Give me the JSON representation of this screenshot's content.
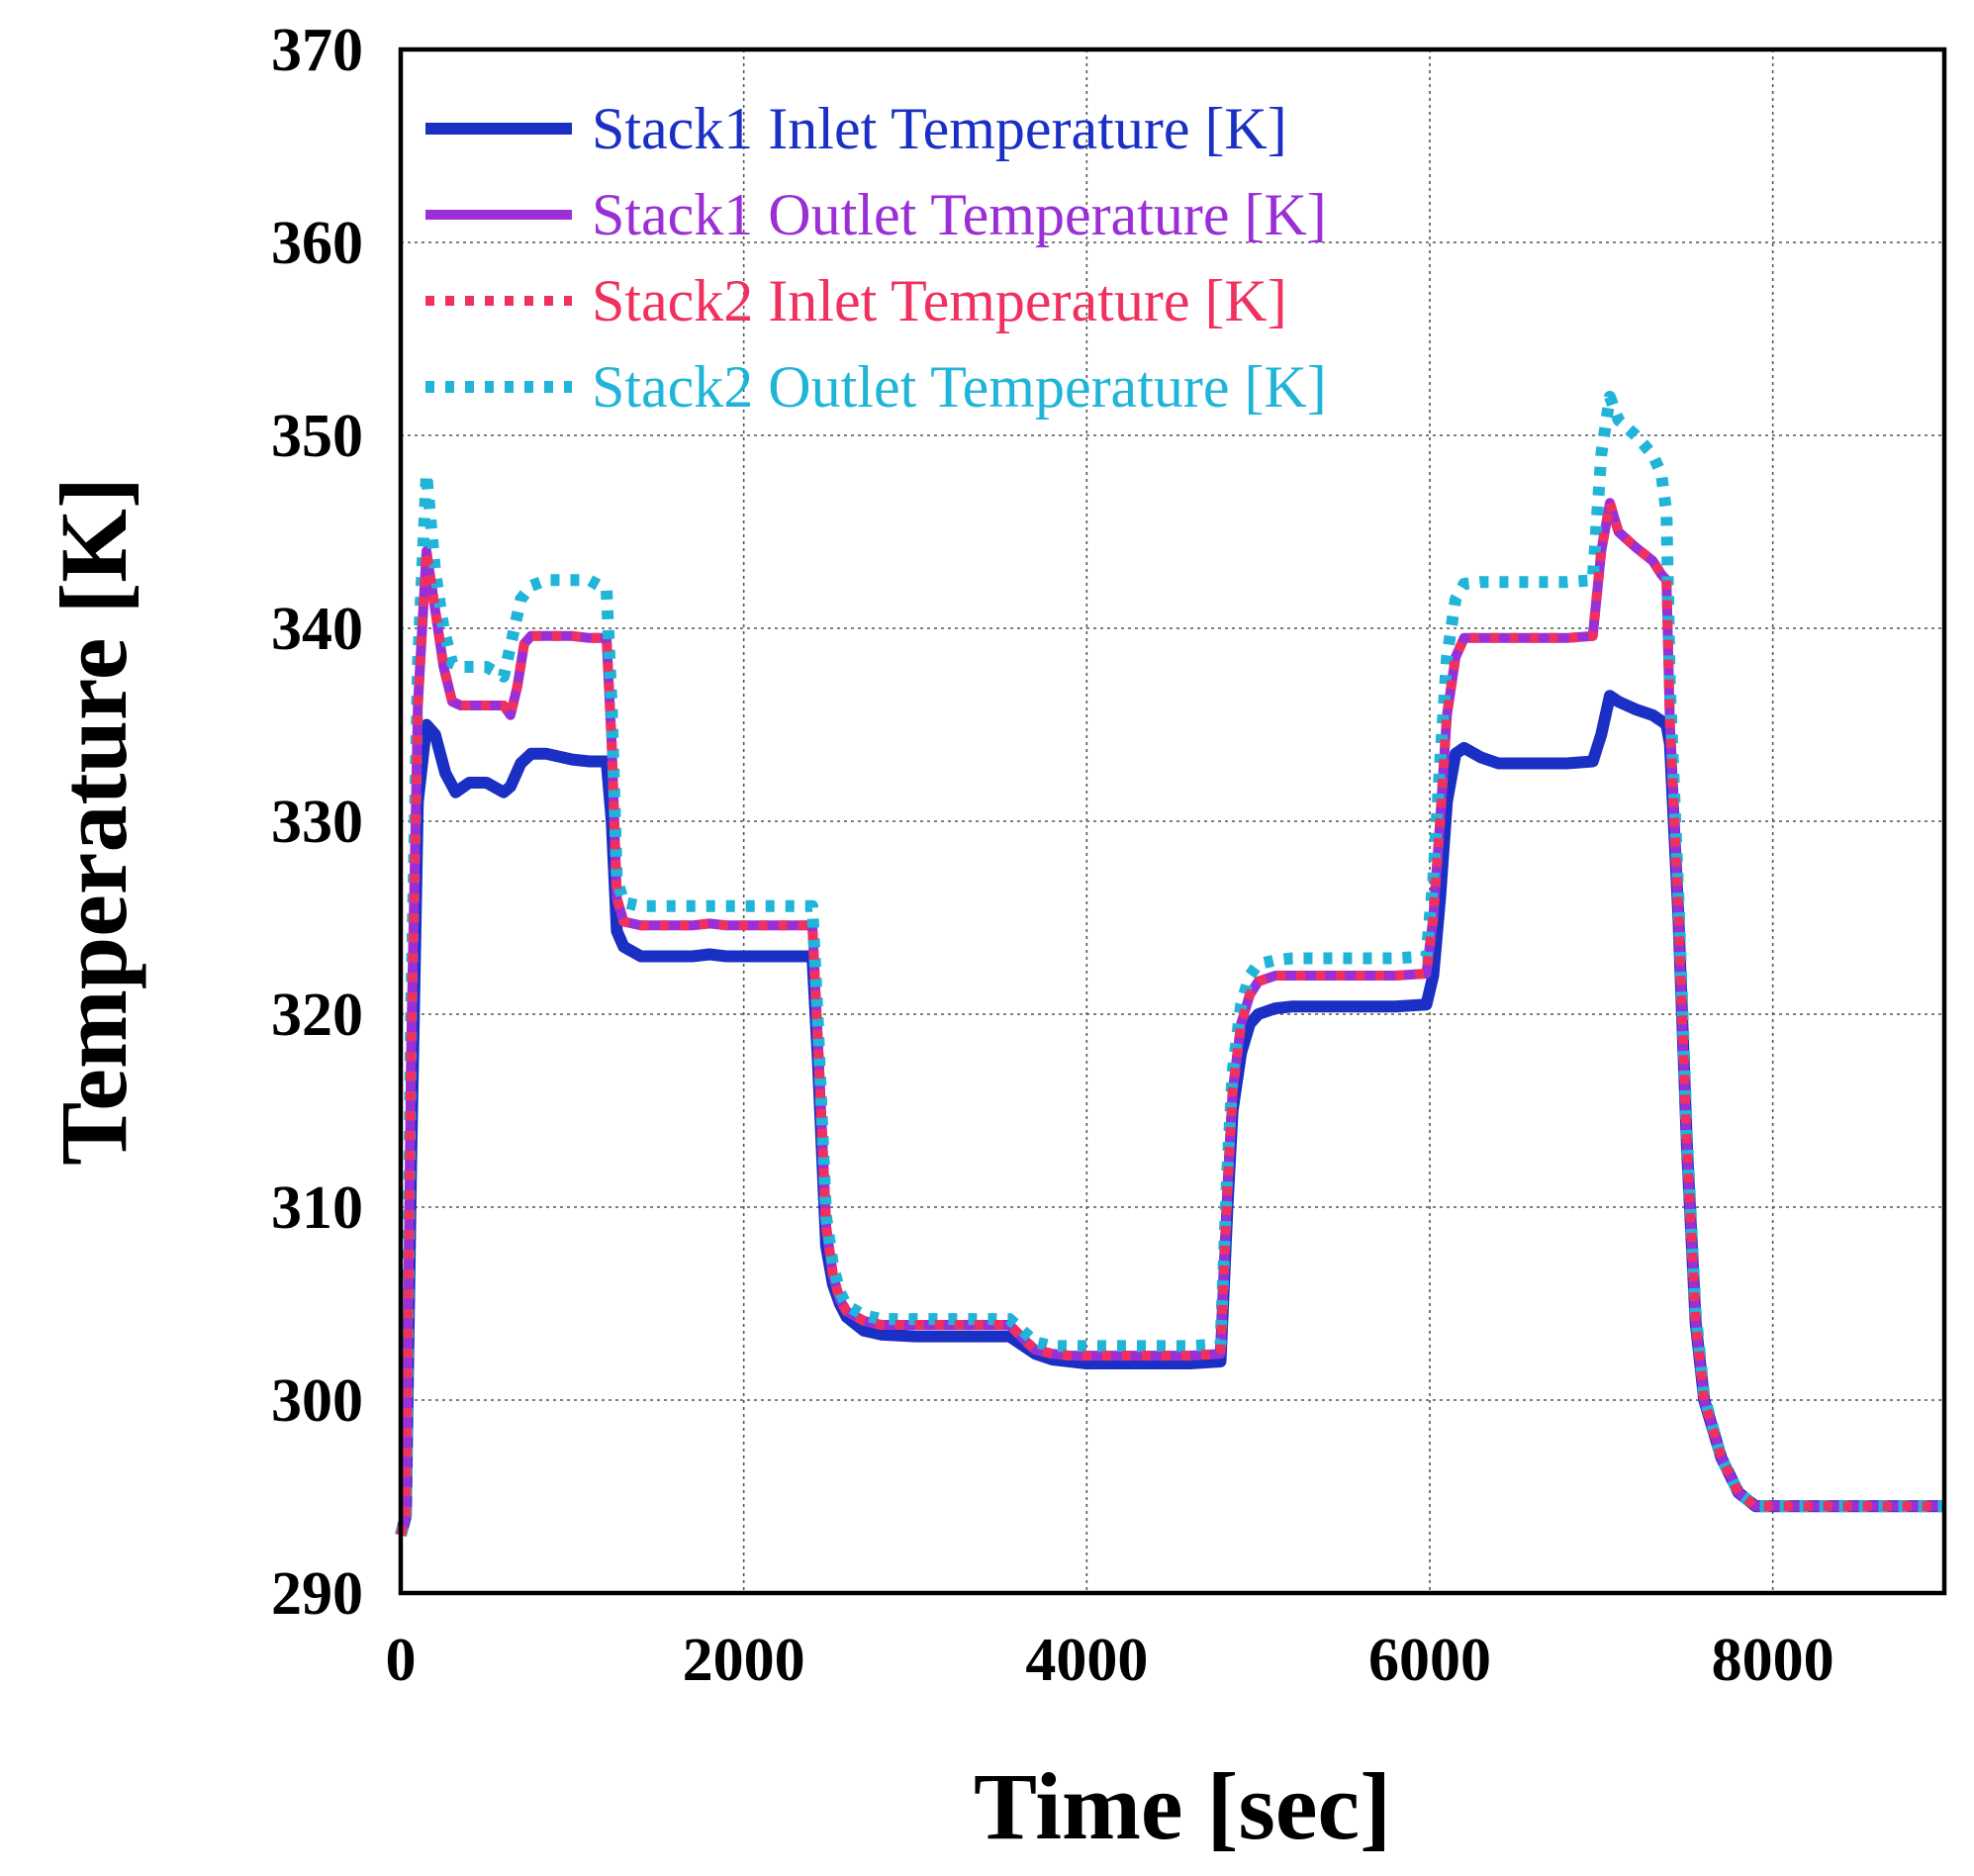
{
  "chart_data": {
    "type": "line",
    "title": "",
    "xlabel": "Time [sec]",
    "ylabel": "Temperature [K]",
    "xlim": [
      0,
      9000
    ],
    "ylim": [
      290,
      370
    ],
    "xticks": [
      0,
      2000,
      4000,
      6000,
      8000
    ],
    "yticks": [
      290,
      300,
      310,
      320,
      330,
      340,
      350,
      360,
      370
    ],
    "xtick_labels": [
      "0",
      "2000",
      "4000",
      "6000",
      "8000"
    ],
    "ytick_labels": [
      "290",
      "300",
      "310",
      "320",
      "330",
      "340",
      "350",
      "360",
      "370"
    ],
    "grid": true,
    "legend_position": "top-left",
    "series": [
      {
        "name": "Stack1 Inlet Temperature [K]",
        "color": "#1a2fc4",
        "style": "solid",
        "x": [
          0,
          30,
          60,
          100,
          150,
          200,
          260,
          320,
          400,
          500,
          600,
          640,
          700,
          760,
          850,
          1000,
          1100,
          1200,
          1230,
          1260,
          1300,
          1400,
          1500,
          1700,
          1800,
          1900,
          2000,
          2200,
          2400,
          2430,
          2480,
          2520,
          2560,
          2600,
          2700,
          2800,
          3000,
          3200,
          3400,
          3550,
          3650,
          3700,
          3800,
          3900,
          4000,
          4300,
          4600,
          4780,
          4820,
          4850,
          4900,
          4950,
          5000,
          5100,
          5200,
          5400,
          5600,
          5800,
          5980,
          6020,
          6060,
          6100,
          6150,
          6200,
          6300,
          6400,
          6600,
          6800,
          6950,
          7000,
          7050,
          7100,
          7200,
          7300,
          7350,
          7380,
          7400,
          7450,
          7500,
          7550,
          7600,
          7700,
          7800,
          7900,
          8000,
          8200,
          8500,
          9000
        ],
        "y": [
          293,
          294,
          312,
          331,
          335,
          334.5,
          332.5,
          331.5,
          332,
          332,
          331.5,
          331.8,
          333,
          333.5,
          333.5,
          333.2,
          333.1,
          333.1,
          330,
          324.3,
          323.5,
          323,
          323,
          323,
          323.1,
          323,
          323,
          323,
          323,
          318,
          308,
          306,
          305,
          304.3,
          303.6,
          303.4,
          303.3,
          303.3,
          303.3,
          303.3,
          302.7,
          302.4,
          302.1,
          302,
          301.9,
          301.9,
          301.9,
          302,
          310,
          315,
          318,
          319.5,
          320,
          320.3,
          320.4,
          320.4,
          320.4,
          320.4,
          320.5,
          322,
          326,
          331,
          333.5,
          333.8,
          333.3,
          333,
          333,
          333,
          333.1,
          334.5,
          336.5,
          336.2,
          335.8,
          335.5,
          335.2,
          335,
          334,
          325,
          313,
          304,
          300,
          297,
          295.2,
          294.5,
          294.5,
          294.5,
          294.5,
          294.5
        ]
      },
      {
        "name": "Stack1 Outlet Temperature [K]",
        "color": "#9b2fd6",
        "style": "solid",
        "x": [
          0,
          30,
          60,
          100,
          150,
          200,
          250,
          300,
          350,
          400,
          500,
          600,
          640,
          680,
          720,
          760,
          850,
          1000,
          1100,
          1200,
          1230,
          1260,
          1300,
          1400,
          1500,
          1700,
          1800,
          1900,
          2000,
          2200,
          2400,
          2430,
          2480,
          2520,
          2560,
          2600,
          2700,
          2800,
          3000,
          3200,
          3400,
          3550,
          3650,
          3700,
          3800,
          3900,
          4000,
          4300,
          4600,
          4780,
          4820,
          4850,
          4900,
          4950,
          5000,
          5100,
          5200,
          5400,
          5600,
          5800,
          5980,
          6020,
          6060,
          6100,
          6150,
          6200,
          6300,
          6400,
          6600,
          6800,
          6950,
          7000,
          7050,
          7100,
          7200,
          7300,
          7350,
          7380,
          7400,
          7450,
          7500,
          7550,
          7600,
          7700,
          7800,
          7900,
          8000,
          8200,
          8500,
          9000
        ],
        "y": [
          293,
          294,
          318,
          336,
          344,
          341,
          338,
          336.2,
          336,
          336,
          336,
          336,
          335.5,
          337,
          339.2,
          339.6,
          339.6,
          339.6,
          339.5,
          339.5,
          334,
          326,
          324.8,
          324.6,
          324.6,
          324.6,
          324.7,
          324.6,
          324.6,
          324.6,
          324.6,
          319,
          309,
          306.5,
          305.2,
          304.6,
          304.1,
          303.9,
          303.9,
          303.9,
          303.9,
          303.9,
          303,
          302.6,
          302.4,
          302.3,
          302.3,
          302.3,
          302.3,
          302.4,
          311,
          316,
          319.5,
          321,
          321.7,
          322,
          322,
          322,
          322,
          322,
          322.1,
          325,
          330,
          335.5,
          338.5,
          339.5,
          339.5,
          339.5,
          339.5,
          339.5,
          339.6,
          344,
          346.5,
          345,
          344.2,
          343.5,
          342.8,
          342.5,
          335,
          325,
          313,
          304,
          300,
          297,
          295.2,
          294.5,
          294.5,
          294.5,
          294.5,
          294.5
        ]
      },
      {
        "name": "Stack2 Inlet Temperature [K]",
        "color": "#f0305e",
        "style": "dotted",
        "x": [
          0,
          30,
          60,
          100,
          150,
          200,
          250,
          300,
          350,
          400,
          500,
          600,
          640,
          680,
          720,
          760,
          850,
          1000,
          1100,
          1200,
          1230,
          1260,
          1300,
          1400,
          1500,
          1700,
          1800,
          1900,
          2000,
          2200,
          2400,
          2430,
          2480,
          2520,
          2560,
          2600,
          2700,
          2800,
          3000,
          3200,
          3400,
          3550,
          3650,
          3700,
          3800,
          3900,
          4000,
          4300,
          4600,
          4780,
          4820,
          4850,
          4900,
          4950,
          5000,
          5100,
          5200,
          5400,
          5600,
          5800,
          5980,
          6020,
          6060,
          6100,
          6150,
          6200,
          6300,
          6400,
          6600,
          6800,
          6950,
          7000,
          7050,
          7100,
          7200,
          7300,
          7350,
          7380,
          7400,
          7450,
          7500,
          7550,
          7600,
          7700,
          7800,
          7900,
          8000,
          8200,
          8500,
          9000
        ],
        "y": [
          293,
          294,
          318,
          336,
          344,
          341,
          338,
          336.2,
          336,
          336,
          336,
          336,
          335.5,
          337,
          339.2,
          339.6,
          339.6,
          339.6,
          339.5,
          339.5,
          334,
          326,
          324.8,
          324.6,
          324.6,
          324.6,
          324.7,
          324.6,
          324.6,
          324.6,
          324.6,
          319,
          309,
          306.5,
          305.2,
          304.6,
          304.1,
          303.9,
          303.9,
          303.9,
          303.9,
          303.9,
          303,
          302.6,
          302.4,
          302.3,
          302.3,
          302.3,
          302.3,
          302.4,
          311,
          316,
          319.5,
          321,
          321.7,
          322,
          322,
          322,
          322,
          322,
          322.1,
          325,
          330,
          335.5,
          338.5,
          339.5,
          339.5,
          339.5,
          339.5,
          339.5,
          339.6,
          344,
          346.5,
          345,
          344.2,
          343.5,
          342.8,
          342.5,
          335,
          325,
          313,
          304,
          300,
          297,
          295.2,
          294.5,
          294.5,
          294.5,
          294.5,
          294.5
        ]
      },
      {
        "name": "Stack2 Outlet Temperature [K]",
        "color": "#1fb4d8",
        "style": "dotted",
        "x": [
          0,
          30,
          60,
          100,
          150,
          200,
          250,
          300,
          350,
          400,
          500,
          600,
          650,
          700,
          760,
          850,
          950,
          1000,
          1100,
          1200,
          1230,
          1260,
          1300,
          1400,
          1500,
          1700,
          1800,
          1900,
          2000,
          2200,
          2400,
          2430,
          2480,
          2520,
          2560,
          2600,
          2700,
          2800,
          3000,
          3200,
          3400,
          3550,
          3650,
          3700,
          3800,
          3900,
          4000,
          4300,
          4600,
          4780,
          4820,
          4850,
          4900,
          4950,
          5000,
          5100,
          5200,
          5400,
          5600,
          5800,
          5980,
          6020,
          6060,
          6100,
          6150,
          6200,
          6300,
          6400,
          6600,
          6800,
          6950,
          7000,
          7050,
          7100,
          7200,
          7300,
          7350,
          7380,
          7400,
          7450,
          7500,
          7550,
          7600,
          7700,
          7800,
          7900,
          8000,
          8200,
          8500,
          9000
        ],
        "y": [
          293,
          294,
          320,
          338,
          348,
          343,
          340,
          338.2,
          338,
          338,
          338,
          337.5,
          339.5,
          341.5,
          342.2,
          342.5,
          342.5,
          342.5,
          342.5,
          342,
          336,
          327,
          325.8,
          325.6,
          325.6,
          325.6,
          325.6,
          325.6,
          325.6,
          325.6,
          325.6,
          320,
          309.5,
          307,
          305.6,
          304.9,
          304.4,
          304.2,
          304.2,
          304.2,
          304.2,
          304.2,
          303.4,
          303,
          302.8,
          302.8,
          302.8,
          302.8,
          302.8,
          302.9,
          312,
          317,
          320.5,
          322,
          322.6,
          322.8,
          322.9,
          322.9,
          322.9,
          322.9,
          323,
          327,
          333,
          338.5,
          341.5,
          342.3,
          342.4,
          342.4,
          342.4,
          342.4,
          342.5,
          349,
          352,
          350.8,
          350,
          349,
          348,
          346,
          337,
          326,
          313.5,
          304.5,
          300.2,
          297,
          295.2,
          294.5,
          294.5,
          294.5,
          294.5,
          294.5
        ]
      }
    ]
  }
}
